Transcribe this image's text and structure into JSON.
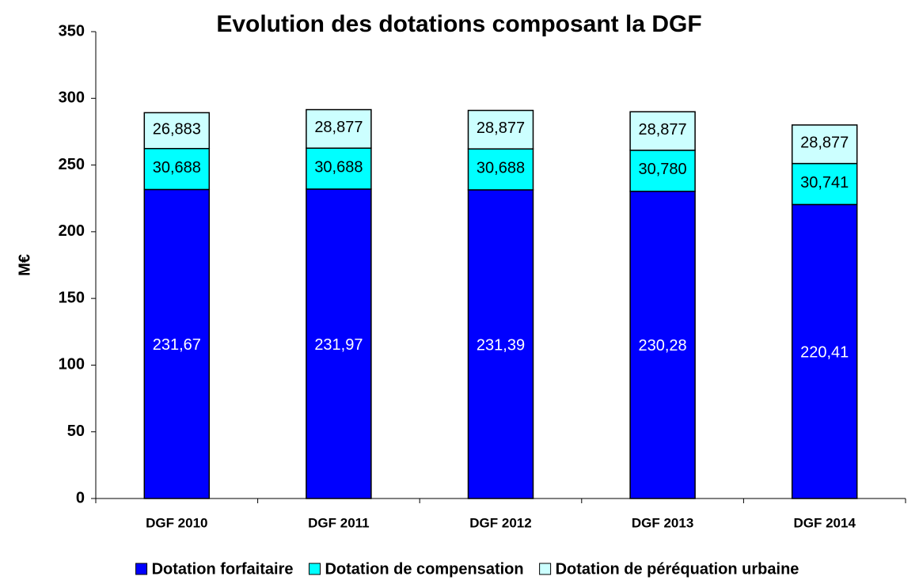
{
  "chart_data": {
    "type": "stacked_bar",
    "title": "Evolution des dotations composant la DGF",
    "y_label": "M€",
    "categories": [
      "DGF 2010",
      "DGF 2011",
      "DGF 2012",
      "DGF 2013",
      "DGF 2014"
    ],
    "series": [
      {
        "name": "Dotation forfaitaire",
        "color": "#0000ff",
        "values": [
          231.67,
          231.97,
          231.39,
          230.28,
          220.41
        ],
        "value_labels": [
          "231,67",
          "231,97",
          "231,39",
          "230,28",
          "220,41"
        ]
      },
      {
        "name": "Dotation de compensation",
        "color": "#00ffff",
        "values": [
          30.688,
          30.688,
          30.688,
          30.78,
          30.741
        ],
        "value_labels": [
          "30,688",
          "30,688",
          "30,688",
          "30,780",
          "30,741"
        ]
      },
      {
        "name": "Dotation de péréquation urbaine",
        "color": "#ccffff",
        "values": [
          26.883,
          28.877,
          28.877,
          28.877,
          28.877
        ],
        "value_labels": [
          "26,883",
          "28,877",
          "28,877",
          "28,877",
          "28,877"
        ]
      }
    ],
    "ylim": [
      0,
      350
    ],
    "yticks": [
      0,
      50,
      100,
      150,
      200,
      250,
      300,
      350
    ],
    "legend": "bottom"
  }
}
